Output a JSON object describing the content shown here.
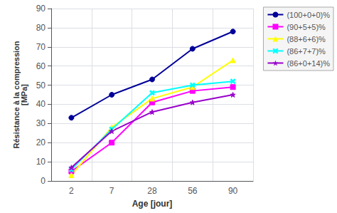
{
  "chart_data": {
    "type": "line",
    "categories": [
      "2",
      "7",
      "28",
      "56",
      "90"
    ],
    "series": [
      {
        "name": "(100+0+0)%",
        "color": "#000099",
        "marker": "circle",
        "values": [
          33,
          45,
          53,
          69,
          78
        ]
      },
      {
        "name": "(90+5+5)%",
        "color": "#FF00FF",
        "marker": "square",
        "values": [
          5,
          20,
          41,
          47,
          49
        ]
      },
      {
        "name": "(88+6+6)%",
        "color": "#FFFF00",
        "marker": "triangle",
        "values": [
          3,
          28,
          43,
          49,
          63
        ]
      },
      {
        "name": "(86+7+7)%",
        "color": "#00FFFF",
        "marker": "x",
        "values": [
          6,
          27,
          46,
          50,
          52
        ]
      },
      {
        "name": "(86+0+14)%",
        "color": "#9900CC",
        "marker": "star",
        "values": [
          7,
          26,
          36,
          41,
          45
        ]
      }
    ],
    "xlabel": "Age [jour]",
    "ylabel": "Résistance à la compression\n[MPa]",
    "ylim": [
      0,
      90
    ],
    "yticks": [
      0,
      10,
      20,
      30,
      40,
      50,
      60,
      70,
      80,
      90
    ],
    "grid": true,
    "legend": "right",
    "line_style": "solid"
  }
}
